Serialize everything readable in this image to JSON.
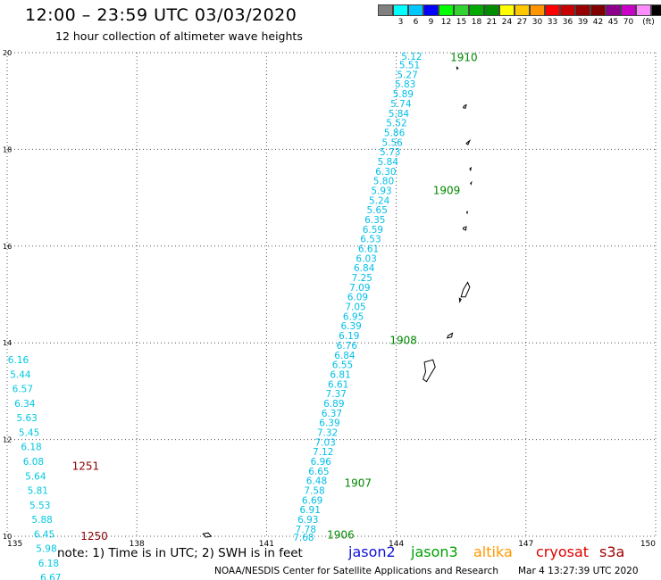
{
  "header": {
    "title": "12:00 – 23:59 UTC 03/03/2020",
    "subtitle": "12 hour collection of altimeter wave heights"
  },
  "legend": {
    "colors": [
      "#808080",
      "#00ffff",
      "#00c8ff",
      "#0000ff",
      "#00ff00",
      "#32d232",
      "#00aa00",
      "#008c00",
      "#ffff00",
      "#ffc800",
      "#ff9600",
      "#ff0000",
      "#c80000",
      "#960000",
      "#800000",
      "#8c008c",
      "#c800c8",
      "#ff8cff",
      "#000000"
    ],
    "labels": [
      "3",
      "6",
      "9",
      "12",
      "15",
      "18",
      "21",
      "24",
      "27",
      "30",
      "33",
      "36",
      "39",
      "42",
      "45",
      "70"
    ],
    "unit": "(ft)"
  },
  "footer": {
    "note": "note: 1) Time is in UTC; 2) SWH is in feet",
    "satellites": [
      {
        "name": "jason2",
        "color": "#1010d8"
      },
      {
        "name": "jason3",
        "color": "#00a000"
      },
      {
        "name": "altika",
        "color": "#ff9900"
      },
      {
        "name": "cryosat",
        "color": "#e00000"
      },
      {
        "name": "s3a",
        "color": "#a00000"
      }
    ],
    "credit": "NOAA/NESDIS Center for Satellite Applications and Research",
    "timestamp": "Mar  4 13:27:39 UTC 2020"
  },
  "chart_data": {
    "type": "scatter",
    "xlim": [
      135,
      150
    ],
    "ylim": [
      10,
      20
    ],
    "x_ticks": [
      "135",
      "138",
      "141",
      "144",
      "147",
      "150"
    ],
    "y_ticks": [
      "10",
      "12",
      "14",
      "16",
      "18",
      "20"
    ],
    "grid": true,
    "colors": {
      "track1": "#00bfe8",
      "track2": "#00c8e0",
      "time_green": "#008800",
      "time_red": "#8b0000"
    },
    "tracks": [
      {
        "color": "track1",
        "points": [
          {
            "x": 144.6,
            "y": 19.93,
            "v": "5.12"
          },
          {
            "x": 144.55,
            "y": 19.75,
            "v": "5.51"
          },
          {
            "x": 144.5,
            "y": 19.55,
            "v": "5.27"
          },
          {
            "x": 144.45,
            "y": 19.35,
            "v": "5.83"
          },
          {
            "x": 144.4,
            "y": 19.15,
            "v": "5.89"
          },
          {
            "x": 144.35,
            "y": 18.95,
            "v": "5.74"
          },
          {
            "x": 144.3,
            "y": 18.75,
            "v": "5.84"
          },
          {
            "x": 144.25,
            "y": 18.55,
            "v": "5.52"
          },
          {
            "x": 144.2,
            "y": 18.35,
            "v": "5.86"
          },
          {
            "x": 144.15,
            "y": 18.15,
            "v": "5.56"
          },
          {
            "x": 144.1,
            "y": 17.95,
            "v": "5.73"
          },
          {
            "x": 144.05,
            "y": 17.75,
            "v": "5.84"
          },
          {
            "x": 144.0,
            "y": 17.55,
            "v": "6.30"
          },
          {
            "x": 143.95,
            "y": 17.35,
            "v": "5.80"
          },
          {
            "x": 143.9,
            "y": 17.15,
            "v": "5.93"
          },
          {
            "x": 143.85,
            "y": 16.95,
            "v": "5.24"
          },
          {
            "x": 143.8,
            "y": 16.75,
            "v": "5.65"
          },
          {
            "x": 143.75,
            "y": 16.55,
            "v": "6.35"
          },
          {
            "x": 143.7,
            "y": 16.35,
            "v": "6.59"
          },
          {
            "x": 143.65,
            "y": 16.15,
            "v": "6.53"
          },
          {
            "x": 143.6,
            "y": 15.95,
            "v": "6.61"
          },
          {
            "x": 143.55,
            "y": 15.75,
            "v": "6.03"
          },
          {
            "x": 143.5,
            "y": 15.55,
            "v": "6.84"
          },
          {
            "x": 143.45,
            "y": 15.35,
            "v": "7.25"
          },
          {
            "x": 143.4,
            "y": 15.15,
            "v": "7.09"
          },
          {
            "x": 143.35,
            "y": 14.95,
            "v": "6.09"
          },
          {
            "x": 143.3,
            "y": 14.75,
            "v": "7.05"
          },
          {
            "x": 143.25,
            "y": 14.55,
            "v": "6.95"
          },
          {
            "x": 143.2,
            "y": 14.35,
            "v": "6.39"
          },
          {
            "x": 143.15,
            "y": 14.15,
            "v": "6.19"
          },
          {
            "x": 143.1,
            "y": 13.95,
            "v": "6.76"
          },
          {
            "x": 143.05,
            "y": 13.75,
            "v": "6.84"
          },
          {
            "x": 143.0,
            "y": 13.55,
            "v": "6.55"
          },
          {
            "x": 142.95,
            "y": 13.35,
            "v": "6.81"
          },
          {
            "x": 142.9,
            "y": 13.15,
            "v": "6.61"
          },
          {
            "x": 142.85,
            "y": 12.95,
            "v": "7.37"
          },
          {
            "x": 142.8,
            "y": 12.75,
            "v": "6.89"
          },
          {
            "x": 142.75,
            "y": 12.55,
            "v": "6.37"
          },
          {
            "x": 142.7,
            "y": 12.35,
            "v": "6.39"
          },
          {
            "x": 142.65,
            "y": 12.15,
            "v": "7.32"
          },
          {
            "x": 142.6,
            "y": 11.95,
            "v": "7.03"
          },
          {
            "x": 142.55,
            "y": 11.75,
            "v": "7.12"
          },
          {
            "x": 142.5,
            "y": 11.55,
            "v": "6.96"
          },
          {
            "x": 142.45,
            "y": 11.35,
            "v": "6.65"
          },
          {
            "x": 142.4,
            "y": 11.15,
            "v": "6.48"
          },
          {
            "x": 142.35,
            "y": 10.95,
            "v": "7.58"
          },
          {
            "x": 142.3,
            "y": 10.75,
            "v": "6.69"
          },
          {
            "x": 142.25,
            "y": 10.55,
            "v": "6.91"
          },
          {
            "x": 142.2,
            "y": 10.35,
            "v": "6.93"
          },
          {
            "x": 142.15,
            "y": 10.15,
            "v": "7.78"
          },
          {
            "x": 142.1,
            "y": 9.98,
            "v": "7.68"
          }
        ]
      },
      {
        "color": "track2",
        "points": [
          {
            "x": 135.5,
            "y": 13.65,
            "v": "6.16"
          },
          {
            "x": 135.55,
            "y": 13.35,
            "v": "5.44"
          },
          {
            "x": 135.6,
            "y": 13.05,
            "v": "6.57"
          },
          {
            "x": 135.65,
            "y": 12.75,
            "v": "6.34"
          },
          {
            "x": 135.7,
            "y": 12.45,
            "v": "5.63"
          },
          {
            "x": 135.75,
            "y": 12.15,
            "v": "5.45"
          },
          {
            "x": 135.8,
            "y": 11.85,
            "v": "6.18"
          },
          {
            "x": 135.85,
            "y": 11.55,
            "v": "6.08"
          },
          {
            "x": 135.9,
            "y": 11.25,
            "v": "5.64"
          },
          {
            "x": 135.95,
            "y": 10.95,
            "v": "5.81"
          },
          {
            "x": 136.0,
            "y": 10.65,
            "v": "5.53"
          },
          {
            "x": 136.05,
            "y": 10.35,
            "v": "5.88"
          },
          {
            "x": 136.1,
            "y": 10.05,
            "v": "6.45"
          },
          {
            "x": 136.15,
            "y": 9.75,
            "v": "5.98"
          },
          {
            "x": 136.2,
            "y": 9.45,
            "v": "6.18"
          },
          {
            "x": 136.25,
            "y": 9.15,
            "v": "6.67"
          }
        ]
      }
    ],
    "time_labels": [
      {
        "x": 145.25,
        "y": 19.9,
        "text": "1910",
        "color": "time_green"
      },
      {
        "x": 144.85,
        "y": 17.15,
        "text": "1909",
        "color": "time_green"
      },
      {
        "x": 143.85,
        "y": 14.05,
        "text": "1908",
        "color": "time_green"
      },
      {
        "x": 142.8,
        "y": 11.1,
        "text": "1907",
        "color": "time_green"
      },
      {
        "x": 142.4,
        "y": 10.03,
        "text": "1906",
        "color": "time_green"
      },
      {
        "x": 136.5,
        "y": 11.45,
        "text": "1251",
        "color": "time_red"
      },
      {
        "x": 136.7,
        "y": 10.0,
        "text": "1250",
        "color": "time_red"
      }
    ],
    "islands": [
      [
        [
          145.4,
          19.7
        ],
        [
          145.43,
          19.68
        ],
        [
          145.41,
          19.66
        ]
      ],
      [
        [
          145.57,
          18.9
        ],
        [
          145.62,
          18.92
        ],
        [
          145.6,
          18.85
        ],
        [
          145.55,
          18.86
        ]
      ],
      [
        [
          145.65,
          18.15
        ],
        [
          145.7,
          18.18
        ],
        [
          145.66,
          18.1
        ],
        [
          145.62,
          18.12
        ]
      ],
      [
        [
          145.7,
          17.6
        ],
        [
          145.73,
          17.62
        ],
        [
          145.72,
          17.57
        ]
      ],
      [
        [
          145.72,
          17.3
        ],
        [
          145.74,
          17.32
        ],
        [
          145.73,
          17.28
        ]
      ],
      [
        [
          145.63,
          16.7
        ],
        [
          145.65,
          16.72
        ],
        [
          145.64,
          16.68
        ]
      ],
      [
        [
          145.55,
          16.38
        ],
        [
          145.62,
          16.4
        ],
        [
          145.61,
          16.33
        ],
        [
          145.55,
          16.35
        ]
      ],
      [
        [
          145.55,
          15.1
        ],
        [
          145.65,
          15.25
        ],
        [
          145.7,
          15.15
        ],
        [
          145.6,
          14.95
        ],
        [
          145.5,
          14.95
        ]
      ],
      [
        [
          145.46,
          14.92
        ],
        [
          145.5,
          14.9
        ],
        [
          145.47,
          14.85
        ]
      ],
      [
        [
          145.2,
          14.15
        ],
        [
          145.3,
          14.2
        ],
        [
          145.28,
          14.12
        ],
        [
          145.18,
          14.1
        ]
      ],
      [
        [
          144.65,
          13.6
        ],
        [
          144.85,
          13.65
        ],
        [
          144.9,
          13.5
        ],
        [
          144.8,
          13.35
        ],
        [
          144.7,
          13.2
        ],
        [
          144.62,
          13.25
        ],
        [
          144.68,
          13.4
        ]
      ],
      [
        [
          139.53,
          10.05
        ],
        [
          139.65,
          10.07
        ],
        [
          139.72,
          10.0
        ],
        [
          139.6,
          9.98
        ]
      ]
    ]
  }
}
